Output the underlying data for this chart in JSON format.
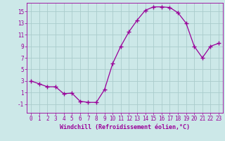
{
  "x": [
    0,
    1,
    2,
    3,
    4,
    5,
    6,
    7,
    8,
    9,
    10,
    11,
    12,
    13,
    14,
    15,
    16,
    17,
    18,
    19,
    20,
    21,
    22,
    23
  ],
  "y": [
    3,
    2.5,
    2,
    2,
    0.8,
    0.9,
    -0.5,
    -0.7,
    -0.7,
    1.5,
    6.0,
    9.0,
    11.5,
    13.5,
    15.2,
    15.8,
    15.8,
    15.7,
    14.8,
    13.0,
    9.0,
    7.0,
    9.0,
    9.5
  ],
  "line_color": "#990099",
  "marker": "+",
  "marker_size": 4,
  "bg_color": "#cce8e8",
  "grid_color": "#aacccc",
  "xlabel": "Windchill (Refroidissement éolien,°C)",
  "ylabel_ticks": [
    -1,
    1,
    3,
    5,
    7,
    9,
    11,
    13,
    15
  ],
  "xlim": [
    -0.5,
    23.5
  ],
  "ylim": [
    -2.5,
    16.5
  ],
  "xticks": [
    0,
    1,
    2,
    3,
    4,
    5,
    6,
    7,
    8,
    9,
    10,
    11,
    12,
    13,
    14,
    15,
    16,
    17,
    18,
    19,
    20,
    21,
    22,
    23
  ],
  "tick_fontsize": 5.5,
  "xlabel_fontsize": 6.0
}
